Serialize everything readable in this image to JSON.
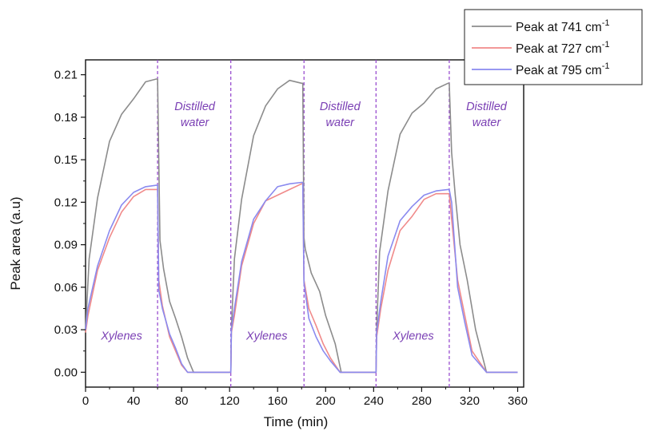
{
  "chart_data": {
    "type": "line",
    "xlabel": "Time (min)",
    "ylabel": "Peak area (a.u)",
    "xlim": [
      0,
      365
    ],
    "ylim": [
      -0.0105,
      0.2205
    ],
    "x_ticks": [
      0,
      40,
      80,
      120,
      160,
      200,
      240,
      280,
      320,
      360
    ],
    "x_tick_labels": [
      "0",
      "40",
      "80",
      "120",
      "160",
      "200",
      "240",
      "280",
      "320",
      "360"
    ],
    "y_ticks": [
      0.0,
      0.03,
      0.06,
      0.09,
      0.12,
      0.15,
      0.18,
      0.21
    ],
    "y_tick_labels": [
      "0.00",
      "0.03",
      "0.06",
      "0.09",
      "0.12",
      "0.15",
      "0.18",
      "0.21"
    ],
    "grid": false,
    "legend_position": "top-right",
    "dividers": [
      60,
      121,
      182,
      242,
      303
    ],
    "regions": [
      {
        "label": "Xylenes",
        "x": 30,
        "y": 0.023
      },
      {
        "label": "Distilled\nwater",
        "x": 91,
        "y": 0.185
      },
      {
        "label": "Xylenes",
        "x": 151,
        "y": 0.023
      },
      {
        "label": "Distilled\nwater",
        "x": 212,
        "y": 0.185
      },
      {
        "label": "Xylenes",
        "x": 273,
        "y": 0.023
      },
      {
        "label": "Distilled\nwater",
        "x": 334,
        "y": 0.185
      }
    ],
    "series": [
      {
        "name": "Peak at 741 cm",
        "name_sup": "-1",
        "color": "#8c8c8c",
        "x": [
          0,
          3,
          10,
          20,
          30,
          40,
          50,
          59,
          60,
          62,
          65,
          70,
          75,
          80,
          85,
          90,
          121,
          121.5,
          124,
          130,
          140,
          150,
          160,
          170,
          180,
          181,
          182,
          183,
          188,
          195,
          200,
          208,
          213,
          242,
          242.5,
          245,
          252,
          262,
          272,
          282,
          292,
          302,
          303,
          305,
          308,
          312,
          318,
          325,
          334,
          360
        ],
        "y": [
          0.03,
          0.08,
          0.123,
          0.163,
          0.182,
          0.193,
          0.205,
          0.207,
          0.207,
          0.093,
          0.073,
          0.05,
          0.038,
          0.025,
          0.01,
          0.0,
          0.0,
          0.03,
          0.08,
          0.122,
          0.167,
          0.188,
          0.2,
          0.206,
          0.204,
          0.204,
          0.095,
          0.087,
          0.07,
          0.057,
          0.04,
          0.02,
          0.0,
          0.0,
          0.03,
          0.085,
          0.128,
          0.168,
          0.183,
          0.19,
          0.2,
          0.204,
          0.204,
          0.155,
          0.125,
          0.09,
          0.065,
          0.03,
          0.0,
          0.0
        ]
      },
      {
        "name": "Peak at 727 cm",
        "name_sup": "-1",
        "color": "#f08a8a",
        "x": [
          0,
          2,
          10,
          20,
          30,
          40,
          50,
          59,
          60,
          61,
          64,
          70,
          75,
          80,
          85,
          90,
          121,
          121.5,
          124,
          130,
          140,
          150,
          160,
          170,
          180,
          181,
          182,
          186,
          192,
          198,
          204,
          212,
          242,
          242.5,
          246,
          252,
          262,
          272,
          282,
          292,
          302,
          303,
          305,
          310,
          316,
          322,
          334,
          360
        ],
        "y": [
          0.028,
          0.04,
          0.072,
          0.095,
          0.113,
          0.124,
          0.129,
          0.129,
          0.129,
          0.065,
          0.047,
          0.025,
          0.015,
          0.005,
          0.0,
          0.0,
          0.0,
          0.028,
          0.04,
          0.075,
          0.105,
          0.121,
          0.125,
          0.129,
          0.133,
          0.133,
          0.065,
          0.045,
          0.033,
          0.02,
          0.01,
          0.0,
          0.0,
          0.025,
          0.045,
          0.072,
          0.1,
          0.11,
          0.122,
          0.126,
          0.126,
          0.126,
          0.108,
          0.065,
          0.04,
          0.015,
          0.0,
          0.0
        ]
      },
      {
        "name": "Peak at 795 cm",
        "name_sup": "-1",
        "color": "#8a8aef",
        "x": [
          0,
          2,
          10,
          20,
          30,
          40,
          50,
          59,
          60,
          61,
          64,
          70,
          75,
          80,
          85,
          90,
          121,
          121.5,
          124,
          130,
          140,
          150,
          160,
          170,
          180,
          181,
          182,
          186,
          192,
          198,
          204,
          212,
          242,
          242.5,
          246,
          252,
          262,
          272,
          282,
          292,
          302,
          303,
          305,
          310,
          316,
          322,
          334,
          360
        ],
        "y": [
          0.03,
          0.045,
          0.075,
          0.1,
          0.118,
          0.127,
          0.131,
          0.132,
          0.132,
          0.058,
          0.045,
          0.027,
          0.017,
          0.006,
          0.0,
          0.0,
          0.0,
          0.03,
          0.045,
          0.078,
          0.108,
          0.121,
          0.131,
          0.133,
          0.134,
          0.134,
          0.063,
          0.038,
          0.025,
          0.015,
          0.008,
          0.0,
          0.0,
          0.028,
          0.05,
          0.082,
          0.107,
          0.117,
          0.125,
          0.128,
          0.129,
          0.129,
          0.12,
          0.06,
          0.035,
          0.012,
          0.0,
          0.0
        ]
      }
    ]
  }
}
